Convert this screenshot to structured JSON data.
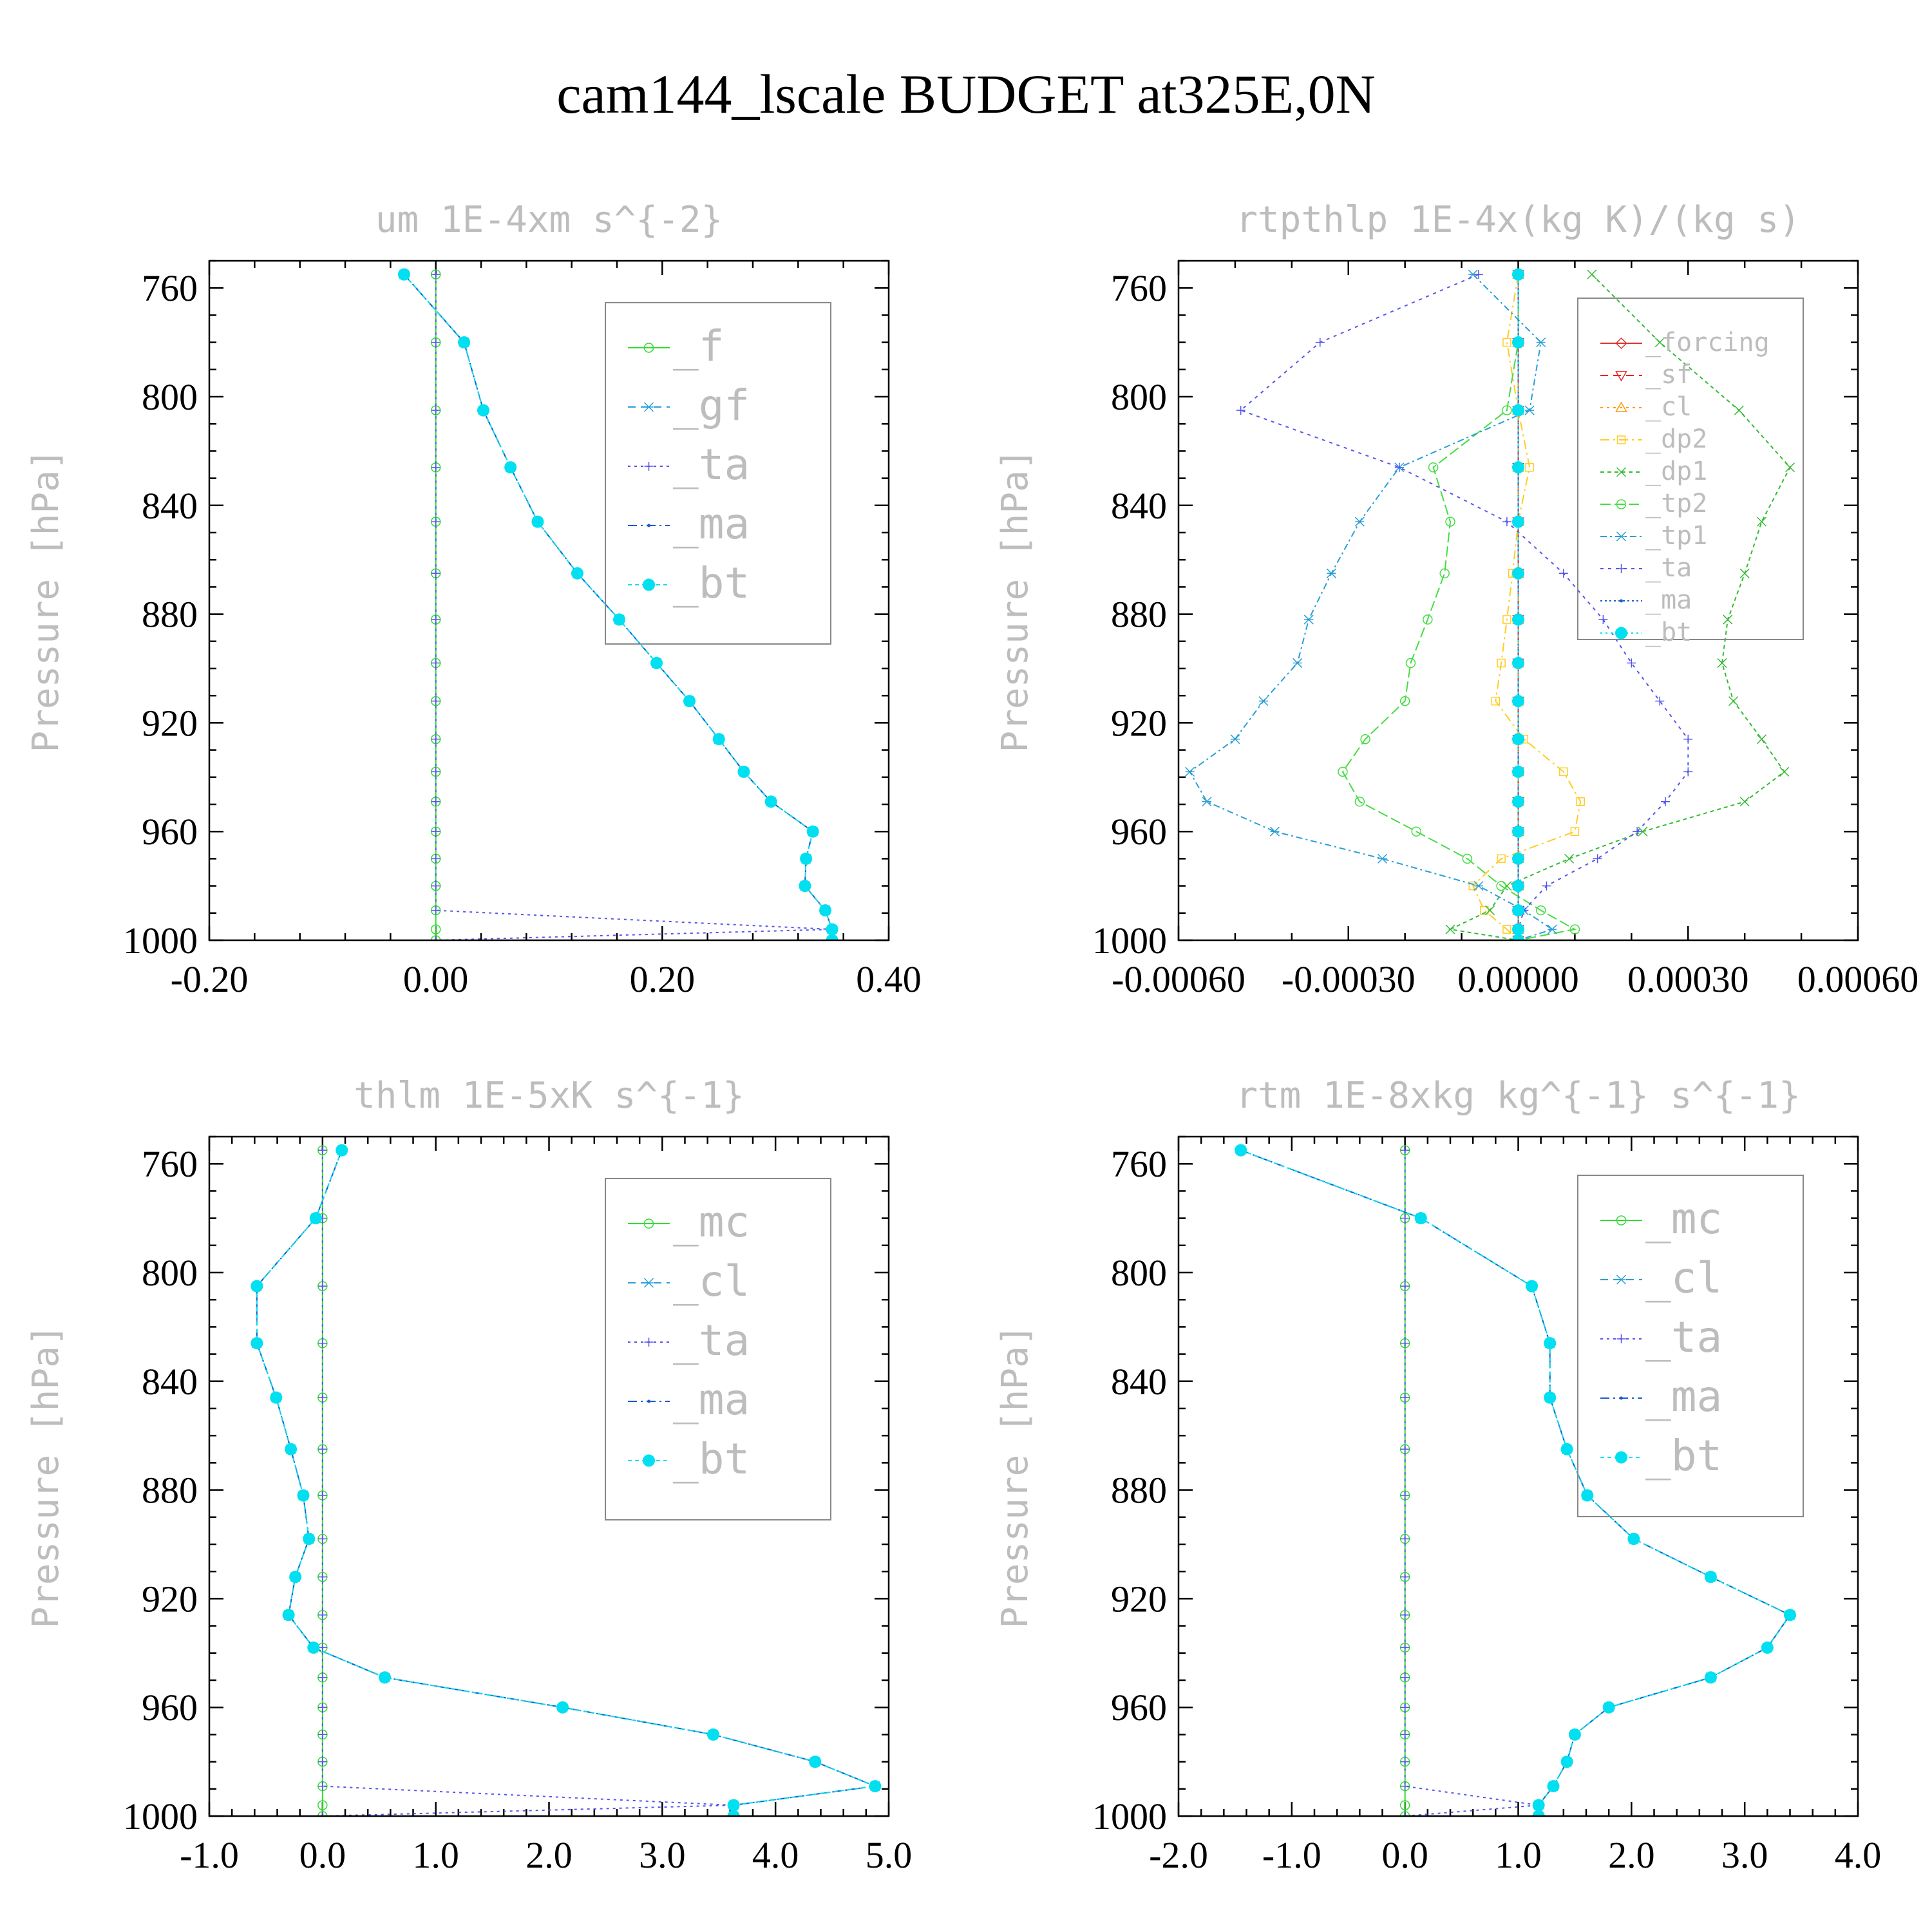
{
  "figure_title": "cam144_lscale  BUDGET at325E,0N",
  "chart_data": [
    {
      "type": "line",
      "title": "um   1E-4xm s^{-2}",
      "ylabel": "Pressure [hPa]",
      "xlabel": "",
      "xlim": [
        -0.2,
        0.4
      ],
      "xticks": [
        "-0.20",
        "0.00",
        "0.20",
        "0.40"
      ],
      "ylim": [
        1000,
        750
      ],
      "yticks": [
        "760",
        "800",
        "840",
        "880",
        "920",
        "960",
        "1000"
      ],
      "legend_position": "top-right",
      "y": [
        755,
        780,
        805,
        826,
        846,
        865,
        882,
        898,
        912,
        926,
        938,
        949,
        960,
        970,
        980,
        989,
        996,
        1000
      ],
      "series": [
        {
          "name": "_f",
          "color": "#33dd33",
          "marker": "circle-open",
          "values": [
            0,
            0,
            0,
            0,
            0,
            0,
            0,
            0,
            0,
            0,
            0,
            0,
            0,
            0,
            0,
            0,
            0,
            0
          ]
        },
        {
          "name": "_gf",
          "color": "#2a9fd6",
          "marker": "asterisk",
          "values": [
            -0.028,
            0.025,
            0.042,
            0.066,
            0.09,
            0.125,
            0.162,
            0.195,
            0.224,
            0.25,
            0.272,
            0.296,
            0.333,
            0.327,
            0.326,
            0.344,
            0.35,
            0.35
          ]
        },
        {
          "name": "_ta",
          "color": "#5555ee",
          "marker": "plus",
          "values": [
            0,
            0,
            0,
            0,
            0,
            0,
            0,
            0,
            0,
            0,
            0,
            0,
            0,
            0,
            0,
            0,
            0.35,
            0
          ]
        },
        {
          "name": "_ma",
          "color": "#1a5ccc",
          "marker": "dot",
          "values": [
            -0.028,
            0.025,
            0.042,
            0.066,
            0.09,
            0.125,
            0.162,
            0.195,
            0.224,
            0.25,
            0.272,
            0.296,
            0.333,
            0.327,
            0.326,
            0.344,
            0.35,
            0.35
          ]
        },
        {
          "name": "_bt",
          "color": "#00e0f0",
          "marker": "circle-filled",
          "values": [
            -0.028,
            0.025,
            0.042,
            0.066,
            0.09,
            0.125,
            0.162,
            0.195,
            0.224,
            0.25,
            0.272,
            0.296,
            0.333,
            0.327,
            0.326,
            0.344,
            0.35,
            0.35
          ]
        }
      ]
    },
    {
      "type": "line",
      "title": "rtpthlp   1E-4x(kg K)/(kg s)",
      "ylabel": "Pressure [hPa]",
      "xlabel": "",
      "xlim": [
        -0.0006,
        0.0006
      ],
      "xticks": [
        "-0.00060",
        "-0.00030",
        "0.00000",
        "0.00030",
        "0.00060"
      ],
      "ylim": [
        1000,
        750
      ],
      "yticks": [
        "760",
        "800",
        "840",
        "880",
        "920",
        "960",
        "1000"
      ],
      "legend_position": "top-right",
      "y": [
        755,
        780,
        805,
        826,
        846,
        865,
        882,
        898,
        912,
        926,
        938,
        949,
        960,
        970,
        980,
        989,
        996,
        1000
      ],
      "series": [
        {
          "name": "_forcing",
          "color": "#dd3333",
          "marker": "diamond-open",
          "values": [
            0,
            0,
            0,
            0,
            0,
            0,
            0,
            0,
            0,
            0,
            0,
            0,
            0,
            0,
            0,
            0,
            0,
            0
          ]
        },
        {
          "name": "_sf",
          "color": "#ee2222",
          "marker": "triangle-down",
          "values": [
            0,
            0,
            0,
            0,
            0,
            0,
            0,
            0,
            0,
            0,
            0,
            0,
            0,
            0,
            0,
            0,
            0,
            0
          ]
        },
        {
          "name": "_cl",
          "color": "#ff9900",
          "marker": "triangle-up",
          "values": [
            0,
            0,
            0,
            0,
            0,
            0,
            0,
            0,
            0,
            0,
            0,
            0,
            0,
            0,
            0,
            0,
            0,
            0
          ]
        },
        {
          "name": "_dp2",
          "color": "#ffcc22",
          "marker": "square-open",
          "values": [
            0,
            -2e-05,
            0,
            2e-05,
            0,
            -1e-05,
            -2e-05,
            -3e-05,
            -4e-05,
            1e-05,
            8e-05,
            0.00011,
            0.0001,
            -3e-05,
            -8e-05,
            -6e-05,
            -2e-05,
            0
          ]
        },
        {
          "name": "_dp1",
          "color": "#33bb33",
          "marker": "x",
          "values": [
            0.00013,
            0.00025,
            0.00039,
            0.00048,
            0.00043,
            0.0004,
            0.00037,
            0.00036,
            0.00038,
            0.00043,
            0.00047,
            0.0004,
            0.00022,
            9e-05,
            -2e-05,
            -5e-05,
            -0.00012,
            0
          ]
        },
        {
          "name": "_tp2",
          "color": "#44dd44",
          "marker": "circle-open",
          "values": [
            0,
            0,
            -2e-05,
            -0.00015,
            -0.00012,
            -0.00013,
            -0.00016,
            -0.00019,
            -0.0002,
            -0.00027,
            -0.00031,
            -0.00028,
            -0.00018,
            -9e-05,
            -3e-05,
            4e-05,
            0.0001,
            0
          ]
        },
        {
          "name": "_tp1",
          "color": "#2a9fd6",
          "marker": "asterisk",
          "values": [
            -8e-05,
            4e-05,
            2e-05,
            -0.00021,
            -0.00028,
            -0.00033,
            -0.00037,
            -0.00039,
            -0.00045,
            -0.0005,
            -0.00058,
            -0.00055,
            -0.00043,
            -0.00024,
            -7e-05,
            1e-05,
            6e-05,
            0
          ]
        },
        {
          "name": "_ta",
          "color": "#5555ee",
          "marker": "plus",
          "values": [
            -7e-05,
            -0.00035,
            -0.00049,
            -0.00021,
            -2e-05,
            8e-05,
            0.00015,
            0.0002,
            0.00025,
            0.0003,
            0.0003,
            0.00026,
            0.00021,
            0.00014,
            5e-05,
            1e-05,
            0,
            0
          ]
        },
        {
          "name": "_ma",
          "color": "#1a5ccc",
          "marker": "dot",
          "values": [
            0,
            0,
            0,
            0,
            0,
            0,
            0,
            0,
            0,
            0,
            0,
            0,
            0,
            0,
            0,
            0,
            0,
            0
          ]
        },
        {
          "name": "_bt",
          "color": "#00e0f0",
          "marker": "circle-filled",
          "values": [
            0,
            0,
            0,
            0,
            0,
            0,
            0,
            0,
            0,
            0,
            0,
            0,
            0,
            0,
            0,
            0,
            0,
            0
          ]
        }
      ]
    },
    {
      "type": "line",
      "title": "thlm   1E-5xK s^{-1}",
      "ylabel": "Pressure [hPa]",
      "xlabel": "",
      "xlim": [
        -1.0,
        5.0
      ],
      "xticks": [
        "-1.0",
        "0.0",
        "1.0",
        "2.0",
        "3.0",
        "4.0",
        "5.0"
      ],
      "ylim": [
        1000,
        750
      ],
      "yticks": [
        "760",
        "800",
        "840",
        "880",
        "920",
        "960",
        "1000"
      ],
      "legend_position": "top-right",
      "y": [
        755,
        780,
        805,
        826,
        846,
        865,
        882,
        898,
        912,
        926,
        938,
        949,
        960,
        970,
        980,
        989,
        996,
        1000
      ],
      "series": [
        {
          "name": "_mc",
          "color": "#33dd33",
          "marker": "circle-open",
          "values": [
            0,
            0,
            0,
            0,
            0,
            0,
            0,
            0,
            0,
            0,
            0,
            0,
            0,
            0,
            0,
            0,
            0,
            0
          ]
        },
        {
          "name": "_cl",
          "color": "#2a9fd6",
          "marker": "asterisk",
          "values": [
            0.17,
            -0.06,
            -0.58,
            -0.58,
            -0.41,
            -0.28,
            -0.17,
            -0.12,
            -0.24,
            -0.3,
            -0.08,
            0.55,
            2.12,
            3.45,
            4.35,
            4.88,
            3.63,
            3.63
          ]
        },
        {
          "name": "_ta",
          "color": "#5555ee",
          "marker": "plus",
          "values": [
            0,
            0,
            0,
            0,
            0,
            0,
            0,
            0,
            0,
            0,
            0,
            0,
            0,
            0,
            0,
            0,
            3.63,
            0
          ]
        },
        {
          "name": "_ma",
          "color": "#1a5ccc",
          "marker": "dot",
          "values": [
            0.17,
            -0.06,
            -0.58,
            -0.58,
            -0.41,
            -0.28,
            -0.17,
            -0.12,
            -0.24,
            -0.3,
            -0.08,
            0.55,
            2.12,
            3.45,
            4.35,
            4.88,
            3.63,
            3.63
          ]
        },
        {
          "name": "_bt",
          "color": "#00e0f0",
          "marker": "circle-filled",
          "values": [
            0.17,
            -0.06,
            -0.58,
            -0.58,
            -0.41,
            -0.28,
            -0.17,
            -0.12,
            -0.24,
            -0.3,
            -0.08,
            0.55,
            2.12,
            3.45,
            4.35,
            4.88,
            3.63,
            3.63
          ]
        }
      ]
    },
    {
      "type": "line",
      "title": "rtm   1E-8xkg kg^{-1} s^{-1}",
      "ylabel": "Pressure [hPa]",
      "xlabel": "",
      "xlim": [
        -2.0,
        4.0
      ],
      "xticks": [
        "-2.0",
        "-1.0",
        "0.0",
        "1.0",
        "2.0",
        "3.0",
        "4.0"
      ],
      "ylim": [
        1000,
        750
      ],
      "yticks": [
        "760",
        "800",
        "840",
        "880",
        "920",
        "960",
        "1000"
      ],
      "legend_position": "top-right",
      "y": [
        755,
        780,
        805,
        826,
        846,
        865,
        882,
        898,
        912,
        926,
        938,
        949,
        960,
        970,
        980,
        989,
        996,
        1000
      ],
      "series": [
        {
          "name": "_mc",
          "color": "#33dd33",
          "marker": "circle-open",
          "values": [
            0,
            0,
            0,
            0,
            0,
            0,
            0,
            0,
            0,
            0,
            0,
            0,
            0,
            0,
            0,
            0,
            0,
            0
          ]
        },
        {
          "name": "_cl",
          "color": "#2a9fd6",
          "marker": "asterisk",
          "values": [
            -1.45,
            0.14,
            1.12,
            1.28,
            1.28,
            1.43,
            1.61,
            2.02,
            2.7,
            3.4,
            3.2,
            2.7,
            1.8,
            1.5,
            1.43,
            1.31,
            1.18,
            1.18
          ]
        },
        {
          "name": "_ta",
          "color": "#5555ee",
          "marker": "plus",
          "values": [
            0,
            0,
            0,
            0,
            0,
            0,
            0,
            0,
            0,
            0,
            0,
            0,
            0,
            0,
            0,
            0,
            1.18,
            0
          ]
        },
        {
          "name": "_ma",
          "color": "#1a5ccc",
          "marker": "dot",
          "values": [
            -1.45,
            0.14,
            1.12,
            1.28,
            1.28,
            1.43,
            1.61,
            2.02,
            2.7,
            3.4,
            3.2,
            2.7,
            1.8,
            1.5,
            1.43,
            1.31,
            1.18,
            1.18
          ]
        },
        {
          "name": "_bt",
          "color": "#00e0f0",
          "marker": "circle-filled",
          "values": [
            -1.45,
            0.14,
            1.12,
            1.28,
            1.28,
            1.43,
            1.61,
            2.02,
            2.7,
            3.4,
            3.2,
            2.7,
            1.8,
            1.5,
            1.43,
            1.31,
            1.18,
            1.18
          ]
        }
      ]
    }
  ]
}
